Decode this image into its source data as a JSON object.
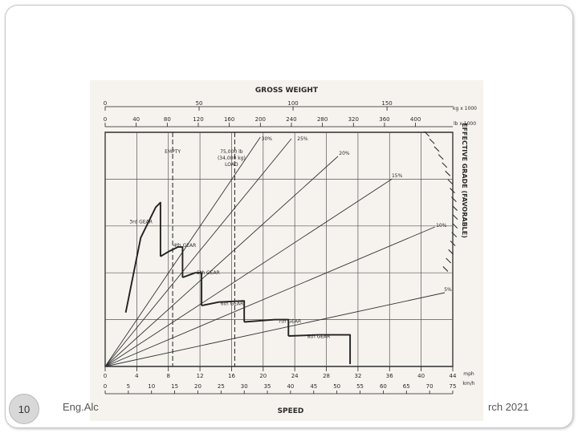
{
  "slide": {
    "page_number": "10",
    "footer_left": "Eng.Alc",
    "footer_right": "rch 2021"
  },
  "chart_data": {
    "type": "line",
    "title": "GROSS WEIGHT",
    "xlabel": "SPEED",
    "ylabel": "EFFECTIVE GRADE (FAVORABLE)",
    "grid": true,
    "top_axis_kg": {
      "unit": "kg x 1000",
      "ticks": [
        "0",
        "50",
        "100",
        "150"
      ],
      "range": [
        0,
        185
      ]
    },
    "top_axis_lb": {
      "unit": "lb x 1000",
      "ticks": [
        "0",
        "40",
        "80",
        "120",
        "160",
        "200",
        "240",
        "280",
        "320",
        "360",
        "400"
      ],
      "range": [
        0,
        448
      ]
    },
    "bottom_axis_mph": {
      "unit": "mph",
      "ticks": [
        "0",
        "4",
        "8",
        "12",
        "16",
        "20",
        "24",
        "28",
        "32",
        "36",
        "40",
        "44"
      ],
      "range": [
        0,
        44
      ]
    },
    "bottom_axis_kmh": {
      "unit": "km/h",
      "ticks": [
        "0",
        "5",
        "10",
        "15",
        "20",
        "25",
        "30",
        "35",
        "40",
        "45",
        "50",
        "55",
        "60",
        "65",
        "70",
        "75"
      ],
      "range": [
        0,
        75
      ]
    },
    "weight_markers": [
      {
        "label": "EMPTY",
        "lb_x1000": 87
      },
      {
        "label": "75,000 lb\n(34,000 kg)\nLOAD",
        "lb_x1000": 167
      }
    ],
    "grade_lines": [
      {
        "label": "30%",
        "lb_x1000": 200
      },
      {
        "label": "25%",
        "lb_x1000": 240
      },
      {
        "label": "20%",
        "lb_x1000": 320
      },
      {
        "label": "15%",
        "lb_x1000": 370
      },
      {
        "label": "10%",
        "lb_x1000": 440
      },
      {
        "label": "5%",
        "lb_x1000": 448
      }
    ],
    "gear_curves": [
      {
        "name": "3rd GEAR",
        "points": [
          [
            2.6,
            0.23
          ],
          [
            4.5,
            0.55
          ],
          [
            6.4,
            0.68
          ],
          [
            7.0,
            0.7
          ],
          [
            7.0,
            0.47
          ]
        ]
      },
      {
        "name": "4th GEAR",
        "points": [
          [
            7.0,
            0.47
          ],
          [
            8.0,
            0.49
          ],
          [
            9.2,
            0.51
          ],
          [
            9.8,
            0.51
          ],
          [
            9.8,
            0.38
          ]
        ]
      },
      {
        "name": "5th GEAR",
        "points": [
          [
            9.8,
            0.38
          ],
          [
            11.4,
            0.4
          ],
          [
            12.2,
            0.4
          ],
          [
            12.2,
            0.26
          ]
        ]
      },
      {
        "name": "6th GEAR",
        "points": [
          [
            12.2,
            0.26
          ],
          [
            14.4,
            0.275
          ],
          [
            17.6,
            0.28
          ],
          [
            17.6,
            0.19
          ]
        ]
      },
      {
        "name": "7th GEAR",
        "points": [
          [
            17.6,
            0.19
          ],
          [
            21.5,
            0.2
          ],
          [
            23.2,
            0.2
          ],
          [
            23.2,
            0.13
          ]
        ]
      },
      {
        "name": "8th GEAR",
        "points": [
          [
            23.2,
            0.13
          ],
          [
            27,
            0.135
          ],
          [
            31,
            0.135
          ],
          [
            31,
            0.01
          ]
        ]
      }
    ]
  }
}
